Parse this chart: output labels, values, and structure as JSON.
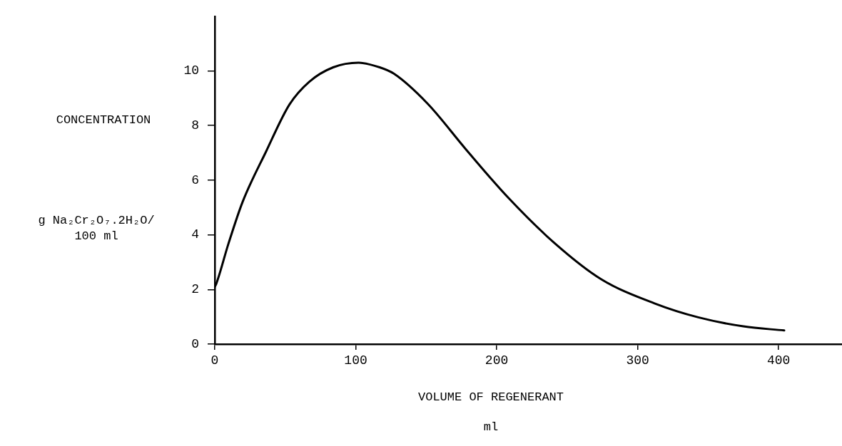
{
  "chart_data": {
    "type": "line",
    "xlabel": "VOLUME OF REGENERANT\nml",
    "ylabel": "CONCENTRATION\ng Na₂Cr₂O₇.2H₂O/\n100 ml",
    "x": [
      0,
      1,
      9.6,
      19.7,
      36.5,
      53,
      67,
      84,
      102,
      117,
      127,
      151,
      178,
      208,
      241,
      274,
      312,
      343,
      375,
      404
    ],
    "values": [
      2.1,
      2.2,
      3.66,
      5.2,
      7.06,
      8.77,
      9.6,
      10.13,
      10.3,
      10.13,
      9.9,
      8.8,
      7.14,
      5.37,
      3.7,
      2.38,
      1.49,
      0.98,
      0.65,
      0.5
    ],
    "color": "#000000",
    "xlim": [
      0,
      445
    ],
    "ylim": [
      0,
      12
    ],
    "xticks": [
      0,
      100,
      200,
      300,
      400
    ],
    "yticks": [
      0,
      2,
      4,
      6,
      8,
      10
    ],
    "grid": false,
    "legend": false,
    "marker": "none",
    "line_style": "solid"
  }
}
